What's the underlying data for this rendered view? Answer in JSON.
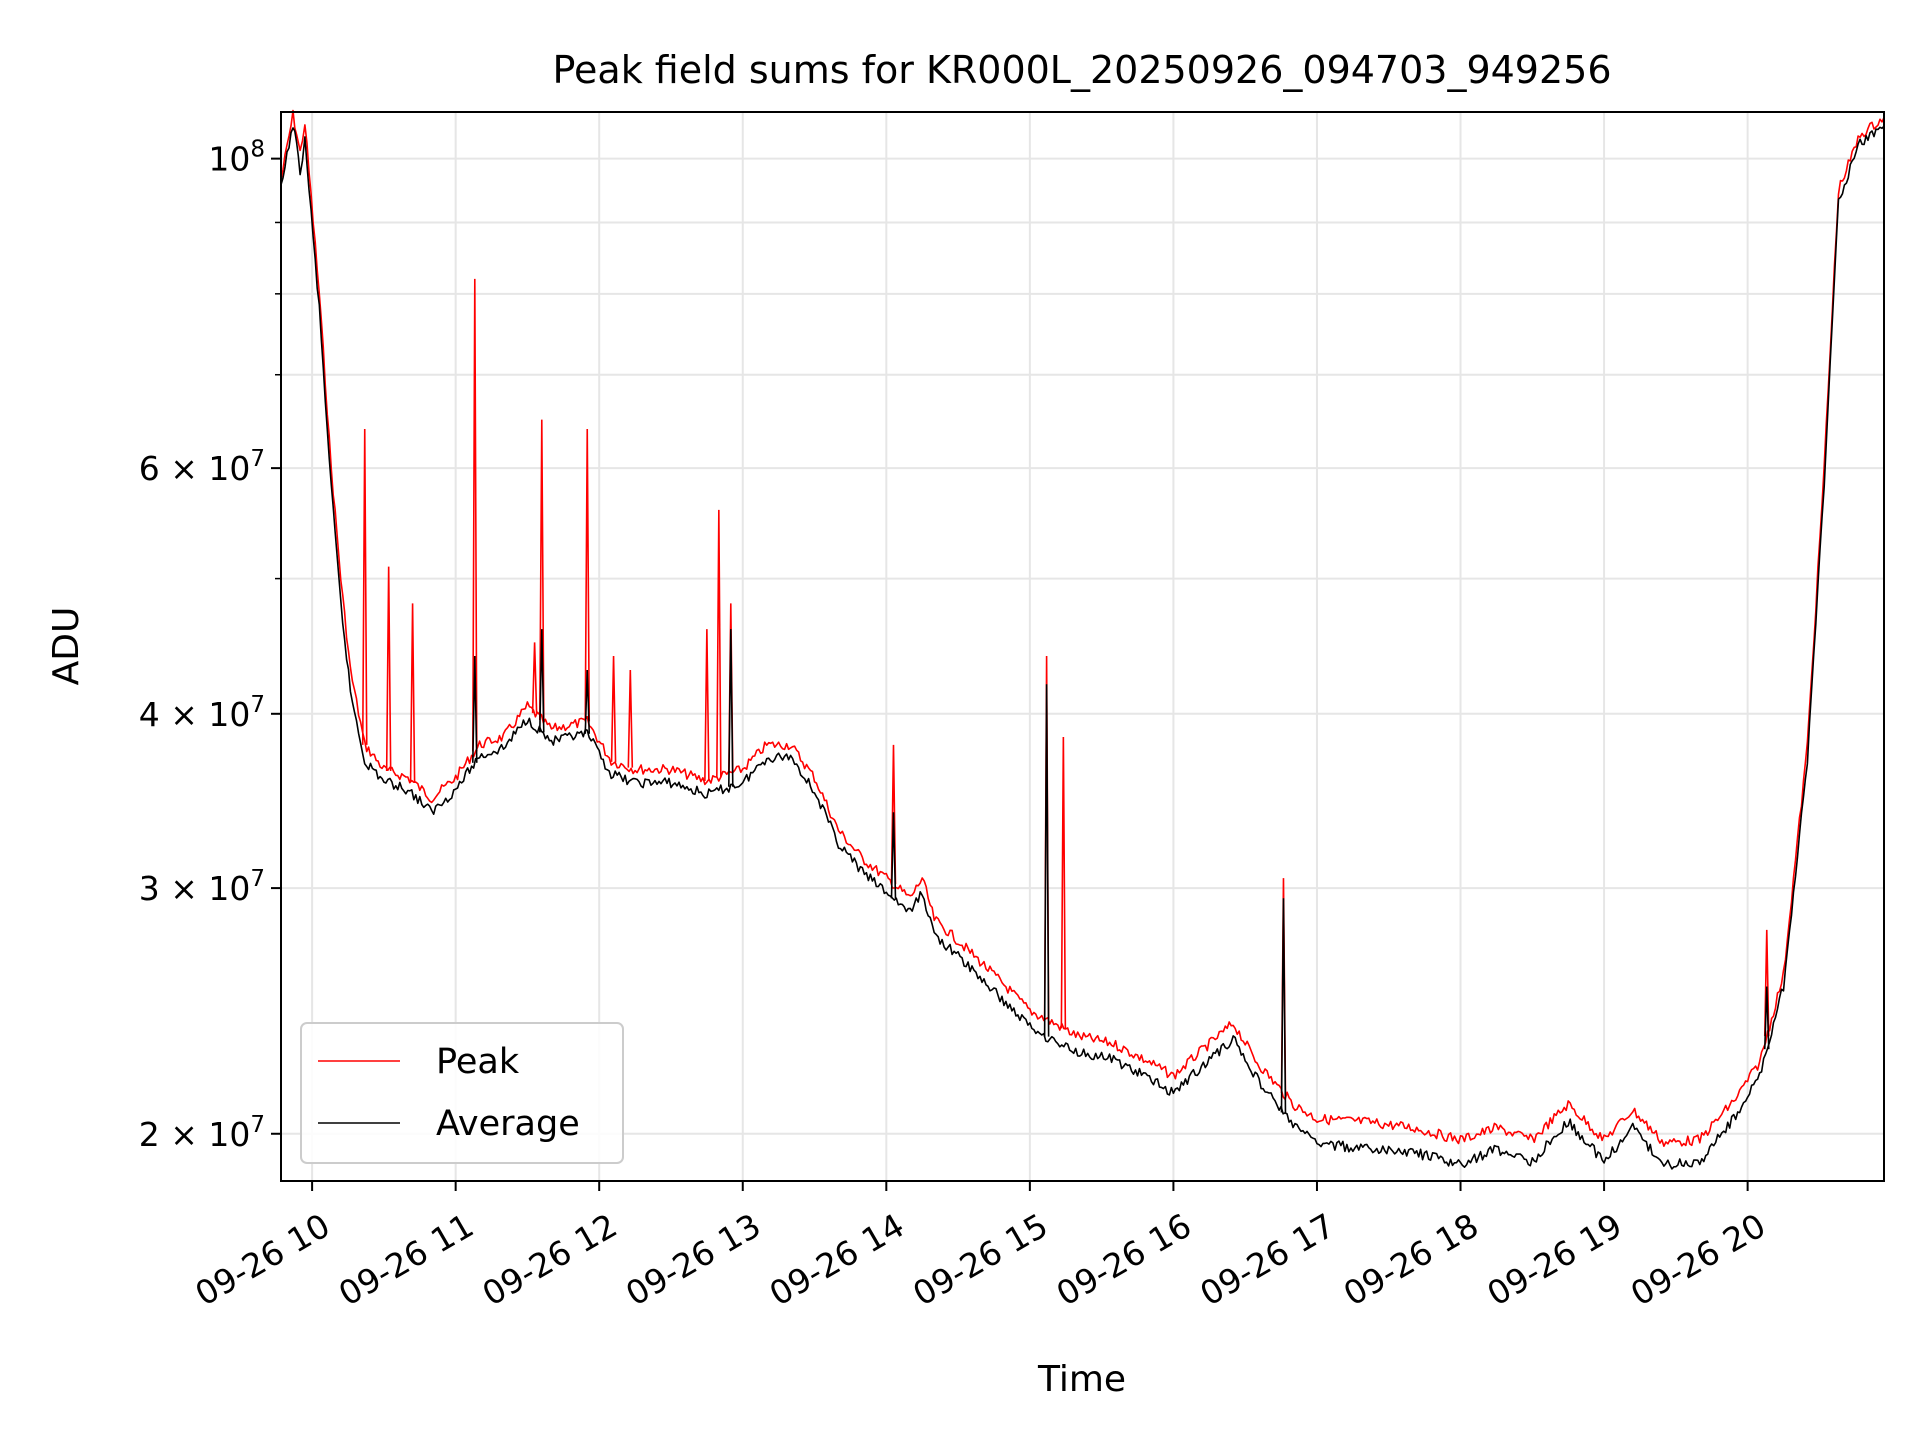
{
  "chart_data": {
    "type": "line",
    "title": "Peak field sums for KR000L_20250926_094703_949256",
    "xlabel": "Time",
    "ylabel": "ADU",
    "y_scale": "log",
    "ylim": [
      18500000,
      108000000
    ],
    "xlim": [
      "09-26 09:47",
      "09-26 20:57"
    ],
    "x_ticks": [
      {
        "time": "09-26 10:00",
        "label": "09-26 10"
      },
      {
        "time": "09-26 11:00",
        "label": "09-26 11"
      },
      {
        "time": "09-26 12:00",
        "label": "09-26 12"
      },
      {
        "time": "09-26 13:00",
        "label": "09-26 13"
      },
      {
        "time": "09-26 14:00",
        "label": "09-26 14"
      },
      {
        "time": "09-26 15:00",
        "label": "09-26 15"
      },
      {
        "time": "09-26 16:00",
        "label": "09-26 16"
      },
      {
        "time": "09-26 17:00",
        "label": "09-26 17"
      },
      {
        "time": "09-26 18:00",
        "label": "09-26 18"
      },
      {
        "time": "09-26 19:00",
        "label": "09-26 19"
      },
      {
        "time": "09-26 20:00",
        "label": "09-26 20"
      }
    ],
    "y_major_ticks": [
      {
        "value": 20000000,
        "base": "2 × 10",
        "exp": "7"
      },
      {
        "value": 30000000,
        "base": "3 × 10",
        "exp": "7"
      },
      {
        "value": 40000000,
        "base": "4 × 10",
        "exp": "7"
      },
      {
        "value": 60000000,
        "base": "6 × 10",
        "exp": "7"
      },
      {
        "value": 100000000,
        "base": "10",
        "exp": "8"
      }
    ],
    "y_minor_ticks": [
      50000000,
      70000000,
      80000000,
      90000000
    ],
    "grid": true,
    "legend_position": "lower-left",
    "series": [
      {
        "name": "Peak",
        "color": "#ff0000",
        "points": [
          [
            "09-26 09:47",
            96500000
          ],
          [
            "09-26 09:52",
            107500000
          ],
          [
            "09-26 09:55",
            101000000
          ],
          [
            "09-26 09:57",
            106000000
          ],
          [
            "09-26 10:03",
            80000000
          ],
          [
            "09-26 10:08",
            60000000
          ],
          [
            "09-26 10:12",
            50000000
          ],
          [
            "09-26 10:16",
            43000000
          ],
          [
            "09-26 10:22",
            38000000
          ],
          [
            "09-26 10:30",
            36500000
          ],
          [
            "09-26 10:40",
            36000000
          ],
          [
            "09-26 10:50",
            34800000
          ],
          [
            "09-26 11:00",
            36000000
          ],
          [
            "09-26 11:10",
            38000000
          ],
          [
            "09-26 11:20",
            38500000
          ],
          [
            "09-26 11:30",
            40500000
          ],
          [
            "09-26 11:40",
            39000000
          ],
          [
            "09-26 11:55",
            39500000
          ],
          [
            "09-26 12:05",
            37000000
          ],
          [
            "09-26 12:15",
            36500000
          ],
          [
            "09-26 12:30",
            36500000
          ],
          [
            "09-26 12:45",
            35800000
          ],
          [
            "09-26 13:00",
            36500000
          ],
          [
            "09-26 13:10",
            38000000
          ],
          [
            "09-26 13:20",
            38000000
          ],
          [
            "09-26 13:30",
            36000000
          ],
          [
            "09-26 13:40",
            33000000
          ],
          [
            "09-26 13:50",
            31500000
          ],
          [
            "09-26 14:00",
            30500000
          ],
          [
            "09-26 14:10",
            29500000
          ],
          [
            "09-26 14:15",
            30500000
          ],
          [
            "09-26 14:20",
            28500000
          ],
          [
            "09-26 14:30",
            27500000
          ],
          [
            "09-26 14:40",
            26500000
          ],
          [
            "09-26 14:50",
            25500000
          ],
          [
            "09-26 15:00",
            24500000
          ],
          [
            "09-26 15:10",
            24000000
          ],
          [
            "09-26 15:20",
            23500000
          ],
          [
            "09-26 15:35",
            23200000
          ],
          [
            "09-26 15:50",
            22500000
          ],
          [
            "09-26 16:00",
            22000000
          ],
          [
            "09-26 16:10",
            22800000
          ],
          [
            "09-26 16:25",
            24000000
          ],
          [
            "09-26 16:35",
            22500000
          ],
          [
            "09-26 16:50",
            21000000
          ],
          [
            "09-26 17:00",
            20500000
          ],
          [
            "09-26 17:20",
            20400000
          ],
          [
            "09-26 17:40",
            20200000
          ],
          [
            "09-26 18:00",
            19800000
          ],
          [
            "09-26 18:15",
            20200000
          ],
          [
            "09-26 18:30",
            19800000
          ],
          [
            "09-26 18:45",
            21000000
          ],
          [
            "09-26 19:00",
            19800000
          ],
          [
            "09-26 19:12",
            20800000
          ],
          [
            "09-26 19:25",
            19700000
          ],
          [
            "09-26 19:40",
            19800000
          ],
          [
            "09-26 19:55",
            21200000
          ],
          [
            "09-26 20:05",
            22500000
          ],
          [
            "09-26 20:15",
            26000000
          ],
          [
            "09-26 20:25",
            38000000
          ],
          [
            "09-26 20:32",
            60000000
          ],
          [
            "09-26 20:38",
            95000000
          ],
          [
            "09-26 20:47",
            104000000
          ],
          [
            "09-26 20:57",
            107000000
          ]
        ],
        "spikes": [
          [
            "09-26 10:22",
            64000000
          ],
          [
            "09-26 10:32",
            51000000
          ],
          [
            "09-26 10:42",
            48000000
          ],
          [
            "09-26 11:08",
            82000000
          ],
          [
            "09-26 11:33",
            45000000
          ],
          [
            "09-26 11:36",
            65000000
          ],
          [
            "09-26 11:55",
            64000000
          ],
          [
            "09-26 12:06",
            44000000
          ],
          [
            "09-26 12:13",
            43000000
          ],
          [
            "09-26 12:45",
            46000000
          ],
          [
            "09-26 12:50",
            56000000
          ],
          [
            "09-26 12:55",
            48000000
          ],
          [
            "09-26 14:03",
            38000000
          ],
          [
            "09-26 15:07",
            44000000
          ],
          [
            "09-26 15:14",
            38500000
          ],
          [
            "09-26 16:46",
            30500000
          ],
          [
            "09-26 20:08",
            28000000
          ]
        ]
      },
      {
        "name": "Average",
        "color": "#000000",
        "points": [
          [
            "09-26 09:47",
            95000000
          ],
          [
            "09-26 09:52",
            106000000
          ],
          [
            "09-26 09:55",
            98000000
          ],
          [
            "09-26 09:57",
            103000000
          ],
          [
            "09-26 10:03",
            78000000
          ],
          [
            "09-26 10:08",
            58000000
          ],
          [
            "09-26 10:12",
            48000000
          ],
          [
            "09-26 10:16",
            41500000
          ],
          [
            "09-26 10:22",
            37000000
          ],
          [
            "09-26 10:30",
            35800000
          ],
          [
            "09-26 10:40",
            35300000
          ],
          [
            "09-26 10:50",
            34000000
          ],
          [
            "09-26 11:00",
            35300000
          ],
          [
            "09-26 11:10",
            37300000
          ],
          [
            "09-26 11:20",
            37800000
          ],
          [
            "09-26 11:30",
            39700000
          ],
          [
            "09-26 11:40",
            38200000
          ],
          [
            "09-26 11:55",
            38700000
          ],
          [
            "09-26 12:05",
            36200000
          ],
          [
            "09-26 12:15",
            35700000
          ],
          [
            "09-26 12:30",
            35700000
          ],
          [
            "09-26 12:45",
            35000000
          ],
          [
            "09-26 13:00",
            35700000
          ],
          [
            "09-26 13:10",
            37200000
          ],
          [
            "09-26 13:20",
            37300000
          ],
          [
            "09-26 13:30",
            35200000
          ],
          [
            "09-26 13:40",
            32300000
          ],
          [
            "09-26 13:50",
            30800000
          ],
          [
            "09-26 14:00",
            29800000
          ],
          [
            "09-26 14:10",
            28800000
          ],
          [
            "09-26 14:15",
            29800000
          ],
          [
            "09-26 14:20",
            27800000
          ],
          [
            "09-26 14:30",
            26800000
          ],
          [
            "09-26 14:40",
            25800000
          ],
          [
            "09-26 14:50",
            24800000
          ],
          [
            "09-26 15:00",
            23900000
          ],
          [
            "09-26 15:10",
            23300000
          ],
          [
            "09-26 15:20",
            22900000
          ],
          [
            "09-26 15:35",
            22600000
          ],
          [
            "09-26 15:50",
            21900000
          ],
          [
            "09-26 16:00",
            21400000
          ],
          [
            "09-26 16:10",
            22200000
          ],
          [
            "09-26 16:25",
            23400000
          ],
          [
            "09-26 16:35",
            21900000
          ],
          [
            "09-26 16:50",
            20300000
          ],
          [
            "09-26 17:00",
            19700000
          ],
          [
            "09-26 17:20",
            19500000
          ],
          [
            "09-26 17:40",
            19400000
          ],
          [
            "09-26 18:00",
            19000000
          ],
          [
            "09-26 18:15",
            19500000
          ],
          [
            "09-26 18:30",
            19100000
          ],
          [
            "09-26 18:45",
            20400000
          ],
          [
            "09-26 19:00",
            19100000
          ],
          [
            "09-26 19:12",
            20200000
          ],
          [
            "09-26 19:25",
            19000000
          ],
          [
            "09-26 19:40",
            19100000
          ],
          [
            "09-26 19:55",
            20600000
          ],
          [
            "09-26 20:05",
            22000000
          ],
          [
            "09-26 20:15",
            25500000
          ],
          [
            "09-26 20:25",
            37000000
          ],
          [
            "09-26 20:32",
            58500000
          ],
          [
            "09-26 20:38",
            93500000
          ],
          [
            "09-26 20:47",
            102500000
          ],
          [
            "09-26 20:57",
            105500000
          ]
        ],
        "spikes": [
          [
            "09-26 11:08",
            44000000
          ],
          [
            "09-26 11:36",
            46000000
          ],
          [
            "09-26 11:55",
            43000000
          ],
          [
            "09-26 12:55",
            46000000
          ],
          [
            "09-26 14:03",
            34000000
          ],
          [
            "09-26 15:07",
            42000000
          ],
          [
            "09-26 16:46",
            29500000
          ],
          [
            "09-26 20:08",
            25500000
          ]
        ]
      }
    ]
  }
}
